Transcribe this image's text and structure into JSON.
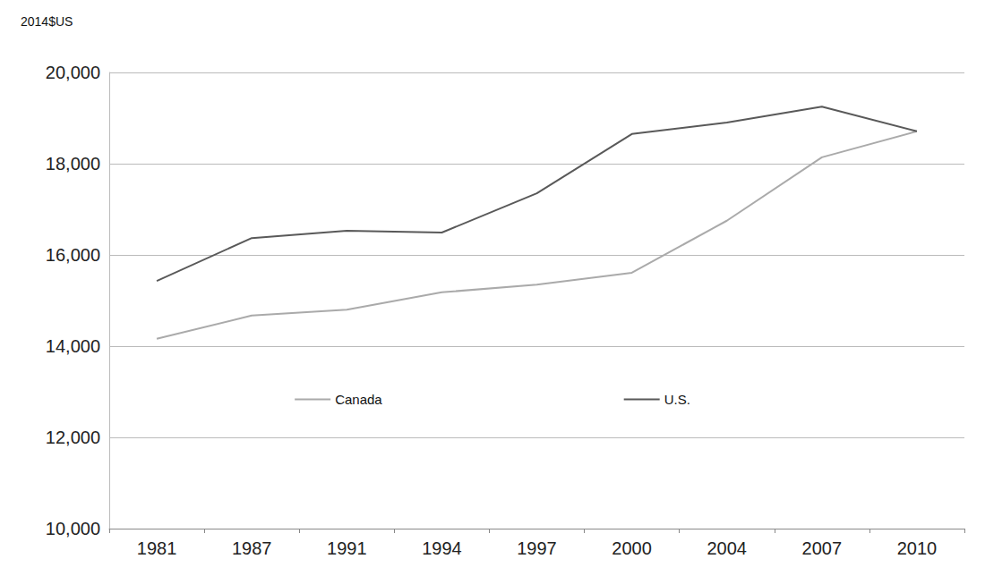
{
  "chart_data": {
    "type": "line",
    "y_label": "2014$US",
    "categories": [
      "1981",
      "1987",
      "1991",
      "1994",
      "1997",
      "2000",
      "2004",
      "2007",
      "2010"
    ],
    "series": [
      {
        "name": "Canada",
        "color": "#aaaaaa",
        "values": [
          14160,
          14670,
          14800,
          15180,
          15350,
          15610,
          16750,
          18140,
          18710
        ]
      },
      {
        "name": "U.S.",
        "color": "#595959",
        "values": [
          15430,
          16370,
          16530,
          16490,
          17350,
          18650,
          18900,
          19250,
          18710
        ]
      }
    ],
    "ylim": [
      10000,
      20000
    ],
    "yticks": [
      {
        "value": 10000,
        "label": "10,000"
      },
      {
        "value": 12000,
        "label": "12,000"
      },
      {
        "value": 14000,
        "label": "14,000"
      },
      {
        "value": 16000,
        "label": "16,000"
      },
      {
        "value": 18000,
        "label": "18,000"
      },
      {
        "value": 20000,
        "label": "20,000"
      }
    ],
    "grid": true,
    "legend": "center",
    "marker": "none",
    "line_style": "solid"
  }
}
